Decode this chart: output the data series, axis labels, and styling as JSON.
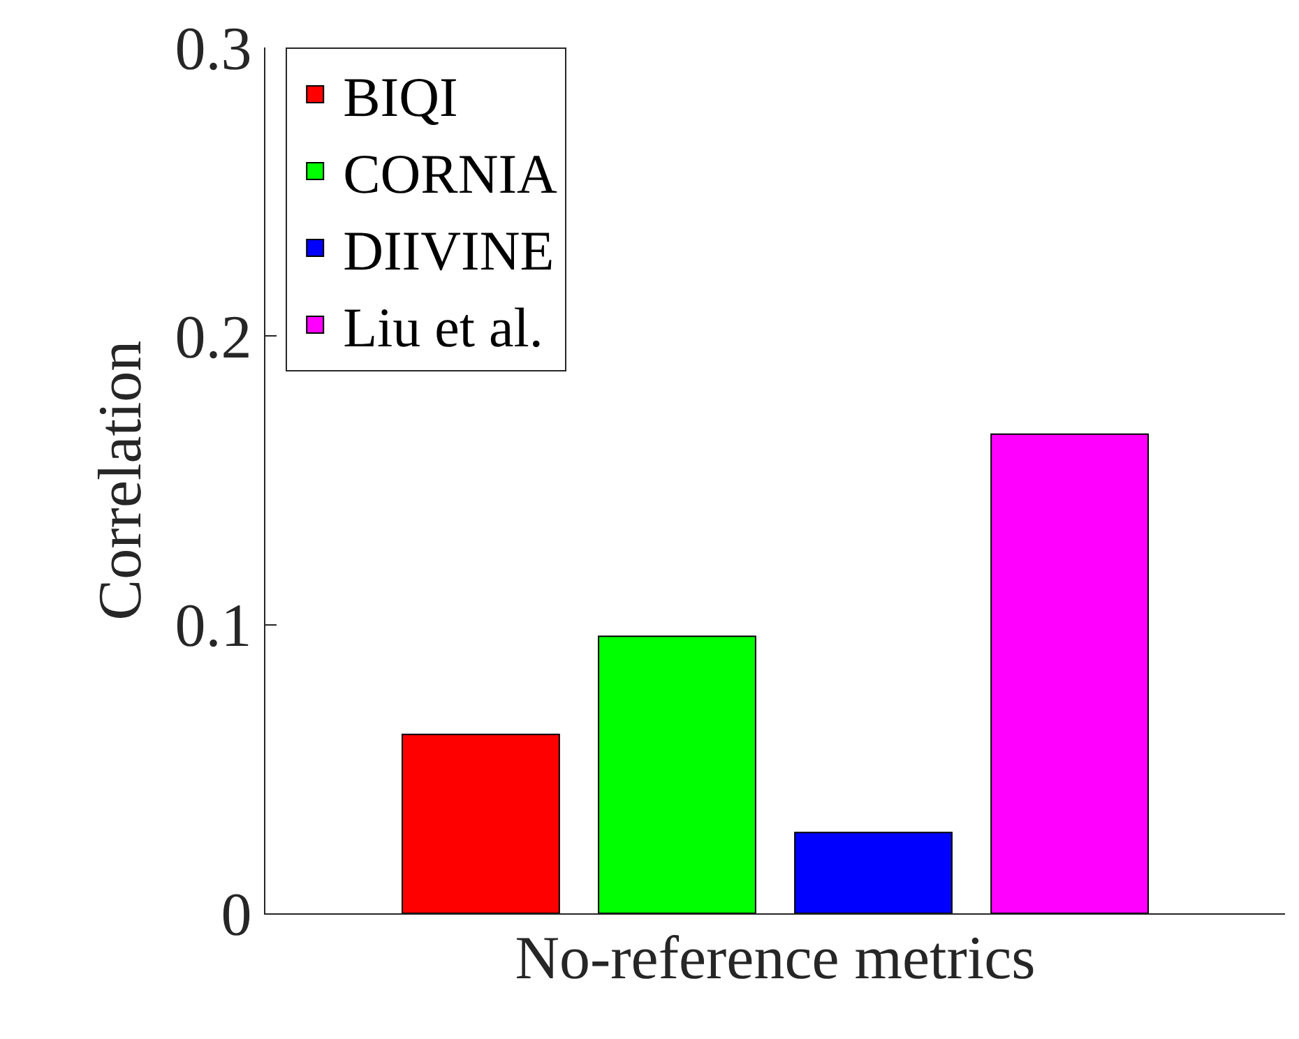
{
  "chart_data": {
    "type": "bar",
    "xlabel": "No-reference metrics",
    "ylabel": "Correlation",
    "categories": [
      null
    ],
    "series": [
      {
        "name": "BIQI",
        "color": "#ff0000",
        "values": [
          0.062
        ]
      },
      {
        "name": "CORNIA",
        "color": "#00ff00",
        "values": [
          0.096
        ]
      },
      {
        "name": "DIIVINE",
        "color": "#0000ff",
        "values": [
          0.028
        ]
      },
      {
        "name": "Liu et al.",
        "color": "#ff00ff",
        "values": [
          0.166
        ]
      }
    ],
    "ylim": [
      0,
      0.3
    ],
    "yticks": [
      0,
      0.1,
      0.2,
      0.3
    ],
    "legend": "top left",
    "tick_labels": "y"
  }
}
